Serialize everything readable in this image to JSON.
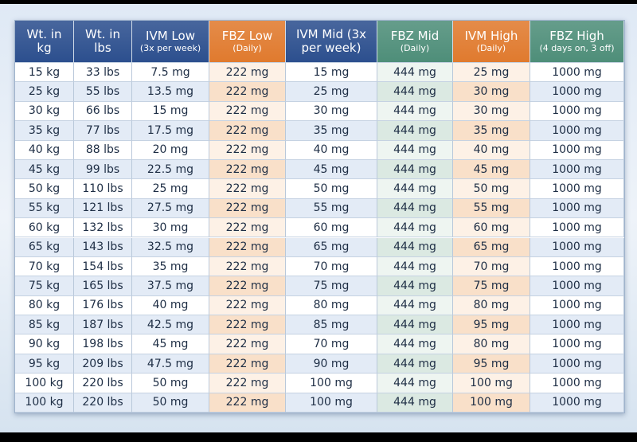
{
  "table": {
    "headers": [
      [
        "Wt. in",
        "kg"
      ],
      [
        "Wt. in",
        "lbs"
      ],
      [
        "IVM Low",
        "(3x per week)"
      ],
      [
        "FBZ Low",
        "(Daily)"
      ],
      [
        "IVM Mid (3x",
        "per week)"
      ],
      [
        "FBZ Mid",
        "(Daily)"
      ],
      [
        "IVM High",
        "(Daily)"
      ],
      [
        "FBZ High",
        "(4 days on, 3 off)"
      ]
    ],
    "rows": [
      [
        "15 kg",
        "33 lbs",
        "7.5 mg",
        "222 mg",
        "15 mg",
        "444 mg",
        "25 mg",
        "1000 mg"
      ],
      [
        "25 kg",
        "55 lbs",
        "13.5 mg",
        "222 mg",
        "25 mg",
        "444 mg",
        "30 mg",
        "1000 mg"
      ],
      [
        "30 kg",
        "66 lbs",
        "15 mg",
        "222 mg",
        "30 mg",
        "444 mg",
        "30 mg",
        "1000 mg"
      ],
      [
        "35 kg",
        "77 lbs",
        "17.5 mg",
        "222 mg",
        "35 mg",
        "444 mg",
        "35 mg",
        "1000 mg"
      ],
      [
        "40 kg",
        "88 lbs",
        "20 mg",
        "222 mg",
        "40 mg",
        "444 mg",
        "40 mg",
        "1000 mg"
      ],
      [
        "45 kg",
        "99 lbs",
        "22.5 mg",
        "222 mg",
        "45 mg",
        "444 mg",
        "45 mg",
        "1000 mg"
      ],
      [
        "50 kg",
        "110 lbs",
        "25 mg",
        "222 mg",
        "50 mg",
        "444 mg",
        "50 mg",
        "1000 mg"
      ],
      [
        "55 kg",
        "121 lbs",
        "27.5 mg",
        "222 mg",
        "55 mg",
        "444 mg",
        "55 mg",
        "1000 mg"
      ],
      [
        "60 kg",
        "132 lbs",
        "30 mg",
        "222 mg",
        "60 mg",
        "444 mg",
        "60 mg",
        "1000 mg"
      ],
      [
        "65 kg",
        "143 lbs",
        "32.5 mg",
        "222 mg",
        "65 mg",
        "444 mg",
        "65 mg",
        "1000 mg"
      ],
      [
        "70 kg",
        "154 lbs",
        "35 mg",
        "222 mg",
        "70 mg",
        "444 mg",
        "70 mg",
        "1000 mg"
      ],
      [
        "75 kg",
        "165 lbs",
        "37.5 mg",
        "222 mg",
        "75 mg",
        "444 mg",
        "75 mg",
        "1000 mg"
      ],
      [
        "80 kg",
        "176 lbs",
        "40 mg",
        "222 mg",
        "80 mg",
        "444 mg",
        "80 mg",
        "1000 mg"
      ],
      [
        "85 kg",
        "187 lbs",
        "42.5 mg",
        "222 mg",
        "85 mg",
        "444 mg",
        "95 mg",
        "1000 mg"
      ],
      [
        "90 kg",
        "198 lbs",
        "45 mg",
        "222 mg",
        "70 mg",
        "444 mg",
        "80 mg",
        "1000 mg"
      ],
      [
        "95 kg",
        "209 lbs",
        "47.5 mg",
        "222 mg",
        "90 mg",
        "444 mg",
        "95 mg",
        "1000 mg"
      ],
      [
        "100 kg",
        "220 lbs",
        "50 mg",
        "222 mg",
        "100 mg",
        "444 mg",
        "100 mg",
        "1000 mg"
      ],
      [
        "100 kg",
        "220 lbs",
        "50 mg",
        "222 mg",
        "100 mg",
        "444 mg",
        "100 mg",
        "1000 mg"
      ]
    ]
  }
}
